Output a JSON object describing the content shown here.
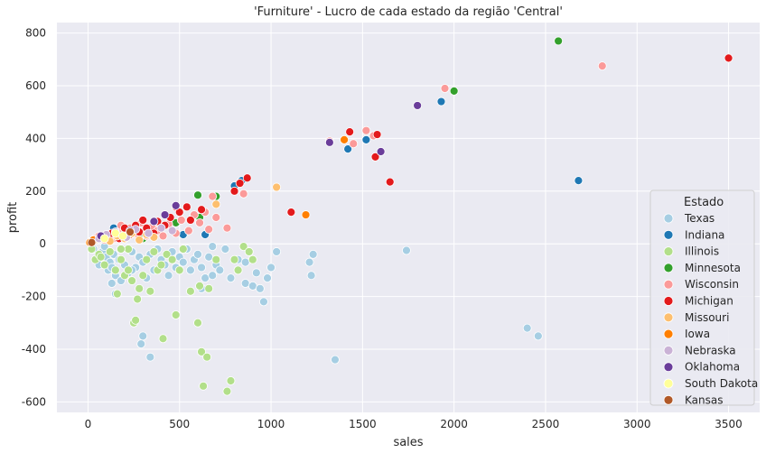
{
  "chart_data": {
    "type": "scatter",
    "title": "'Furniture' - Lucro de cada estado da região 'Central'",
    "xlabel": "sales",
    "ylabel": "profit",
    "xlim": [
      -170,
      3670
    ],
    "ylim": [
      -640,
      840
    ],
    "xticks": [
      0,
      500,
      1000,
      1500,
      2000,
      2500,
      3000,
      3500
    ],
    "yticks": [
      -600,
      -400,
      -200,
      0,
      200,
      400,
      600,
      800
    ],
    "grid": true,
    "legend": {
      "title": "Estado",
      "placement": "lower-right"
    },
    "series": [
      {
        "name": "Texas",
        "color": "#a6cee3",
        "points": [
          [
            30,
            -20
          ],
          [
            50,
            -60
          ],
          [
            60,
            -80
          ],
          [
            80,
            -30
          ],
          [
            90,
            -10
          ],
          [
            100,
            -50
          ],
          [
            110,
            -100
          ],
          [
            120,
            -70
          ],
          [
            130,
            -90
          ],
          [
            140,
            -40
          ],
          [
            150,
            -120
          ],
          [
            170,
            -60
          ],
          [
            180,
            -20
          ],
          [
            200,
            -80
          ],
          [
            220,
            -110
          ],
          [
            240,
            -30
          ],
          [
            260,
            -90
          ],
          [
            280,
            -50
          ],
          [
            300,
            -70
          ],
          [
            320,
            -130
          ],
          [
            340,
            -40
          ],
          [
            360,
            -100
          ],
          [
            380,
            -20
          ],
          [
            400,
            -60
          ],
          [
            420,
            -80
          ],
          [
            440,
            -120
          ],
          [
            460,
            -30
          ],
          [
            480,
            -90
          ],
          [
            500,
            -50
          ],
          [
            520,
            -70
          ],
          [
            540,
            -20
          ],
          [
            560,
            -100
          ],
          [
            580,
            -60
          ],
          [
            600,
            -40
          ],
          [
            620,
            -90
          ],
          [
            640,
            -130
          ],
          [
            660,
            -50
          ],
          [
            680,
            -10
          ],
          [
            700,
            -80
          ],
          [
            720,
            -100
          ],
          [
            750,
            -20
          ],
          [
            780,
            -130
          ],
          [
            820,
            -60
          ],
          [
            860,
            -150
          ],
          [
            880,
            -30
          ],
          [
            900,
            -160
          ],
          [
            920,
            -110
          ],
          [
            940,
            -170
          ],
          [
            960,
            -220
          ],
          [
            980,
            -130
          ],
          [
            1000,
            -90
          ],
          [
            1030,
            -30
          ],
          [
            1210,
            -70
          ],
          [
            1220,
            -120
          ],
          [
            1230,
            -40
          ],
          [
            130,
            -150
          ],
          [
            150,
            -190
          ],
          [
            180,
            -140
          ],
          [
            240,
            -100
          ],
          [
            290,
            -380
          ],
          [
            300,
            -350
          ],
          [
            340,
            -430
          ],
          [
            1350,
            -440
          ],
          [
            1740,
            -25
          ],
          [
            2400,
            -320
          ],
          [
            2460,
            -350
          ],
          [
            620,
            -170
          ],
          [
            680,
            -120
          ],
          [
            820,
            -100
          ],
          [
            860,
            -70
          ]
        ]
      },
      {
        "name": "Indiana",
        "color": "#1f78b4",
        "points": [
          [
            140,
            60
          ],
          [
            520,
            35
          ],
          [
            640,
            35
          ],
          [
            800,
            220
          ],
          [
            840,
            240
          ],
          [
            1420,
            360
          ],
          [
            1520,
            395
          ],
          [
            1930,
            540
          ],
          [
            2680,
            240
          ]
        ]
      },
      {
        "name": "Illinois",
        "color": "#b2df8a",
        "points": [
          [
            20,
            -20
          ],
          [
            40,
            -60
          ],
          [
            60,
            -40
          ],
          [
            90,
            -80
          ],
          [
            120,
            -30
          ],
          [
            150,
            -100
          ],
          [
            160,
            -190
          ],
          [
            180,
            -60
          ],
          [
            200,
            -120
          ],
          [
            220,
            -20
          ],
          [
            240,
            -140
          ],
          [
            250,
            -300
          ],
          [
            260,
            -290
          ],
          [
            270,
            -210
          ],
          [
            280,
            -170
          ],
          [
            300,
            -120
          ],
          [
            320,
            -60
          ],
          [
            340,
            -180
          ],
          [
            360,
            -30
          ],
          [
            380,
            -100
          ],
          [
            400,
            -80
          ],
          [
            410,
            -360
          ],
          [
            430,
            -40
          ],
          [
            460,
            -60
          ],
          [
            480,
            -270
          ],
          [
            500,
            -100
          ],
          [
            520,
            -20
          ],
          [
            560,
            -180
          ],
          [
            600,
            -300
          ],
          [
            610,
            -160
          ],
          [
            620,
            -410
          ],
          [
            630,
            -540
          ],
          [
            650,
            -430
          ],
          [
            660,
            -170
          ],
          [
            700,
            -60
          ],
          [
            760,
            -560
          ],
          [
            780,
            -520
          ],
          [
            800,
            -60
          ],
          [
            820,
            -100
          ],
          [
            850,
            -10
          ],
          [
            880,
            -30
          ],
          [
            900,
            -60
          ],
          [
            220,
            -100
          ],
          [
            180,
            -20
          ],
          [
            70,
            -50
          ]
        ]
      },
      {
        "name": "Minnesota",
        "color": "#33a02c",
        "points": [
          [
            180,
            40
          ],
          [
            300,
            20
          ],
          [
            480,
            80
          ],
          [
            600,
            185
          ],
          [
            610,
            100
          ],
          [
            700,
            180
          ],
          [
            2000,
            580
          ],
          [
            2570,
            770
          ]
        ]
      },
      {
        "name": "Wisconsin",
        "color": "#fb9a99",
        "points": [
          [
            20,
            10
          ],
          [
            40,
            20
          ],
          [
            60,
            30
          ],
          [
            90,
            15
          ],
          [
            110,
            35
          ],
          [
            140,
            20
          ],
          [
            160,
            45
          ],
          [
            180,
            70
          ],
          [
            200,
            30
          ],
          [
            230,
            60
          ],
          [
            260,
            40
          ],
          [
            290,
            80
          ],
          [
            320,
            30
          ],
          [
            350,
            65
          ],
          [
            380,
            50
          ],
          [
            410,
            30
          ],
          [
            440,
            75
          ],
          [
            480,
            40
          ],
          [
            510,
            90
          ],
          [
            550,
            50
          ],
          [
            580,
            110
          ],
          [
            610,
            80
          ],
          [
            640,
            120
          ],
          [
            660,
            55
          ],
          [
            680,
            180
          ],
          [
            700,
            100
          ],
          [
            760,
            60
          ],
          [
            850,
            190
          ],
          [
            1320,
            390
          ],
          [
            1450,
            380
          ],
          [
            1520,
            430
          ],
          [
            1560,
            410
          ],
          [
            1950,
            590
          ],
          [
            2810,
            675
          ]
        ]
      },
      {
        "name": "Michigan",
        "color": "#e31a1c",
        "points": [
          [
            130,
            40
          ],
          [
            170,
            20
          ],
          [
            200,
            60
          ],
          [
            230,
            35
          ],
          [
            260,
            70
          ],
          [
            280,
            45
          ],
          [
            300,
            90
          ],
          [
            320,
            60
          ],
          [
            360,
            40
          ],
          [
            380,
            85
          ],
          [
            420,
            70
          ],
          [
            450,
            100
          ],
          [
            480,
            140
          ],
          [
            500,
            120
          ],
          [
            540,
            140
          ],
          [
            560,
            90
          ],
          [
            620,
            130
          ],
          [
            800,
            200
          ],
          [
            830,
            230
          ],
          [
            870,
            250
          ],
          [
            1110,
            120
          ],
          [
            1430,
            425
          ],
          [
            1570,
            330
          ],
          [
            1580,
            415
          ],
          [
            1650,
            235
          ],
          [
            3500,
            705
          ]
        ]
      },
      {
        "name": "Missouri",
        "color": "#fdbf6f",
        "points": [
          [
            40,
            15
          ],
          [
            80,
            25
          ],
          [
            120,
            10
          ],
          [
            160,
            30
          ],
          [
            200,
            20
          ],
          [
            240,
            40
          ],
          [
            280,
            15
          ],
          [
            320,
            35
          ],
          [
            360,
            25
          ],
          [
            700,
            150
          ],
          [
            1030,
            215
          ]
        ]
      },
      {
        "name": "Iowa",
        "color": "#ff7f00",
        "points": [
          [
            10,
            5
          ],
          [
            30,
            15
          ],
          [
            1190,
            110
          ],
          [
            1400,
            395
          ]
        ]
      },
      {
        "name": "Nebraska",
        "color": "#cab2d6",
        "points": [
          [
            60,
            20
          ],
          [
            100,
            35
          ],
          [
            150,
            45
          ],
          [
            210,
            25
          ],
          [
            260,
            55
          ],
          [
            330,
            40
          ],
          [
            400,
            60
          ],
          [
            460,
            50
          ]
        ]
      },
      {
        "name": "Oklahoma",
        "color": "#6a3d9a",
        "points": [
          [
            70,
            30
          ],
          [
            230,
            50
          ],
          [
            360,
            85
          ],
          [
            420,
            110
          ],
          [
            480,
            145
          ],
          [
            1320,
            385
          ],
          [
            1600,
            350
          ],
          [
            1800,
            525
          ]
        ]
      },
      {
        "name": "South Dakota",
        "color": "#ffff99",
        "points": [
          [
            90,
            20
          ],
          [
            150,
            40
          ],
          [
            190,
            30
          ]
        ]
      },
      {
        "name": "Kansas",
        "color": "#b15928",
        "points": [
          [
            20,
            5
          ],
          [
            230,
            45
          ]
        ]
      }
    ]
  }
}
